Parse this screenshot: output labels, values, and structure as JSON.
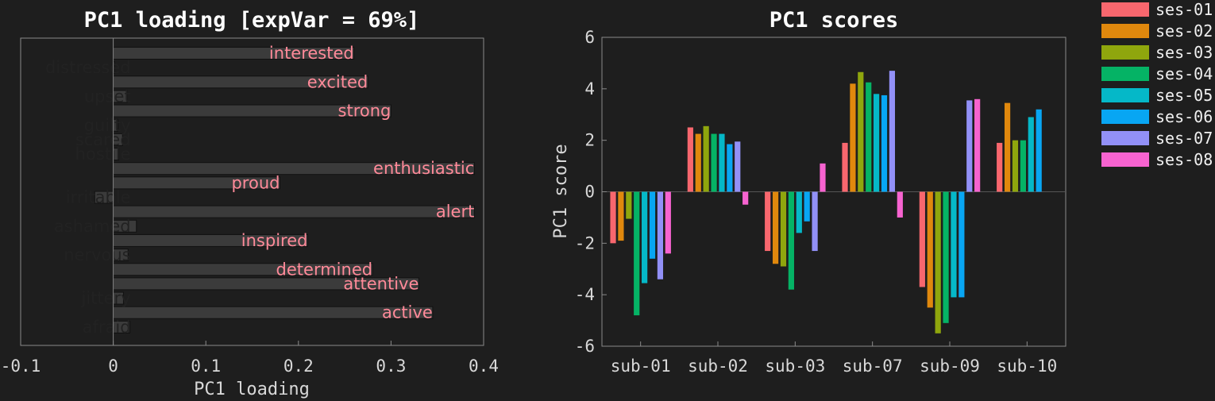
{
  "chart_data": [
    {
      "type": "bar",
      "orientation": "horizontal",
      "title": "PC1 loading [expVar = 69%]",
      "xlabel": "PC1 loading",
      "ylabel": "",
      "xlim": [
        -0.1,
        0.4
      ],
      "xticks": [
        "-0.1",
        "0",
        "0.1",
        "0.2",
        "0.3",
        "0.4"
      ],
      "grid": false,
      "categories": [
        "interested",
        "distressed",
        "excited",
        "upset",
        "strong",
        "guilty",
        "scared",
        "hostile",
        "enthusiastic",
        "proud",
        "irritable",
        "alert",
        "ashamed",
        "inspired",
        "nervous",
        "determined",
        "attentive",
        "jittery",
        "active",
        "afraid"
      ],
      "values": [
        0.26,
        0.001,
        0.275,
        0.015,
        0.3,
        0.005,
        0.01,
        0.006,
        0.39,
        0.18,
        -0.02,
        0.39,
        0.025,
        0.21,
        0.016,
        0.28,
        0.33,
        0.011,
        0.345,
        0.018
      ],
      "label_colors": {
        "positive": "#ff8a99",
        "negative": "#222222"
      }
    },
    {
      "type": "bar",
      "title": "PC1 scores",
      "xlabel": "",
      "ylabel": "PC1 score",
      "ylim": [
        -6,
        6
      ],
      "yticks": [
        "-6",
        "-4",
        "-2",
        "0",
        "2",
        "4",
        "6"
      ],
      "grid": false,
      "legend_position": "right",
      "categories": [
        "sub-01",
        "sub-02",
        "sub-03",
        "sub-07",
        "sub-09",
        "sub-10"
      ],
      "series": [
        {
          "name": "ses-01",
          "color": "#f8676e",
          "values": [
            -2.0,
            2.5,
            -2.3,
            1.9,
            -3.7,
            1.9
          ]
        },
        {
          "name": "ses-02",
          "color": "#e0880d",
          "values": [
            -1.9,
            2.25,
            -2.8,
            4.2,
            -4.5,
            3.45
          ]
        },
        {
          "name": "ses-03",
          "color": "#8fa60d",
          "values": [
            -1.05,
            2.55,
            -2.9,
            4.65,
            -5.5,
            2.0
          ]
        },
        {
          "name": "ses-04",
          "color": "#05b365",
          "values": [
            -4.8,
            2.25,
            -3.8,
            4.25,
            -5.1,
            2.0
          ]
        },
        {
          "name": "ses-05",
          "color": "#05b8c8",
          "values": [
            -3.55,
            2.25,
            -1.6,
            3.8,
            -4.1,
            2.9
          ]
        },
        {
          "name": "ses-06",
          "color": "#08a6f3",
          "values": [
            -2.6,
            1.85,
            -1.15,
            3.75,
            -4.1,
            3.2
          ]
        },
        {
          "name": "ses-07",
          "color": "#9290f7",
          "values": [
            -3.4,
            1.95,
            -2.3,
            4.7,
            3.55,
            0
          ]
        },
        {
          "name": "ses-08",
          "color": "#f763d0",
          "values": [
            -2.4,
            -0.5,
            1.1,
            -1.0,
            3.6,
            0
          ]
        }
      ]
    }
  ]
}
